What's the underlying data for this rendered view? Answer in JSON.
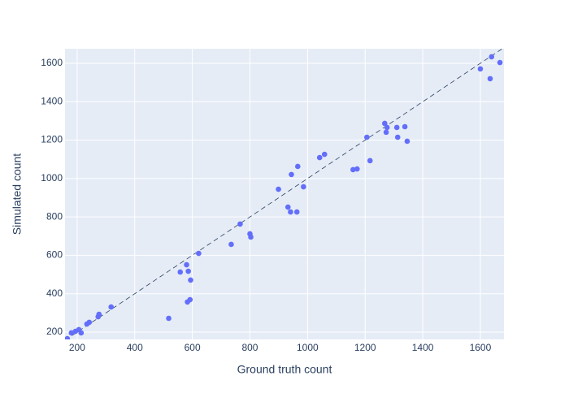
{
  "chart_data": {
    "type": "scatter",
    "x_label": "Ground truth count",
    "y_label": "Simulated count",
    "color": "#636efa",
    "grid": true,
    "identity_line": true,
    "xlim": [
      158,
      1682
    ],
    "ylim": [
      162,
      1676
    ],
    "xticks": [
      200,
      400,
      600,
      800,
      1000,
      1200,
      1400,
      1600
    ],
    "yticks": [
      200,
      400,
      600,
      800,
      1000,
      1200,
      1400,
      1600
    ],
    "x": [
      166,
      180,
      194,
      206,
      214,
      234,
      242,
      273,
      276,
      318,
      518,
      558,
      580,
      586,
      594,
      583,
      592,
      622,
      766,
      735,
      800,
      803,
      899,
      944,
      932,
      941,
      963,
      966,
      986,
      1042,
      1059,
      1158,
      1172,
      1206,
      1217,
      1268,
      1273,
      1276,
      1310,
      1313,
      1338,
      1346,
      1600,
      1634,
      1639,
      1668
    ],
    "y": [
      166,
      196,
      204,
      213,
      196,
      242,
      251,
      280,
      293,
      331,
      272,
      513,
      551,
      517,
      471,
      357,
      369,
      610,
      763,
      657,
      712,
      695,
      944,
      1021,
      851,
      826,
      826,
      1063,
      957,
      1109,
      1126,
      1046,
      1050,
      1215,
      1093,
      1287,
      1241,
      1266,
      1266,
      1215,
      1270,
      1194,
      1571,
      1520,
      1634,
      1604
    ]
  }
}
